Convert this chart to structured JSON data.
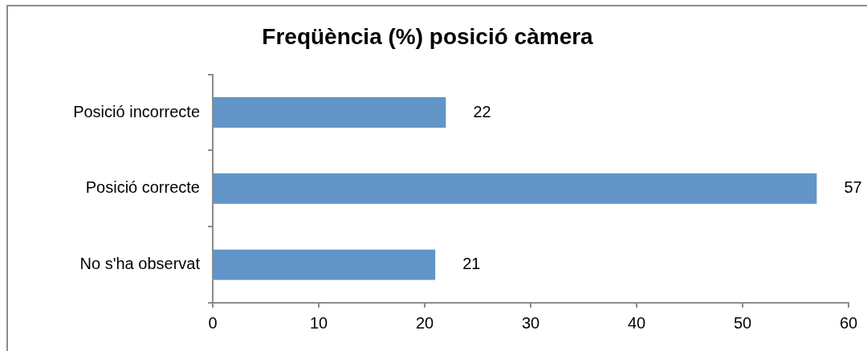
{
  "chart_data": {
    "type": "bar",
    "orientation": "horizontal",
    "title": "Freqüència (%) posició càmera",
    "categories": [
      "Posició incorrecte",
      "Posició correcte",
      "No s'ha observat"
    ],
    "values": [
      22,
      57,
      21
    ],
    "color": "#6195c8",
    "xlim": [
      0,
      60
    ],
    "xticks": [
      0,
      10,
      20,
      30,
      40,
      50,
      60
    ],
    "data_labels": true
  }
}
